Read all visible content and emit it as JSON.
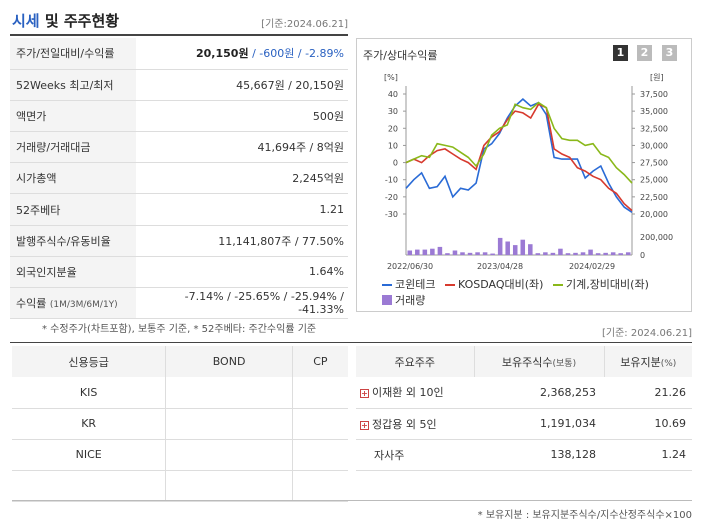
{
  "header": {
    "title_a": "시세",
    "title_b": " 및 주주현황",
    "date": "[기준:2024.06.21]"
  },
  "info_rows": [
    {
      "key": "주가/전일대비/수익률",
      "price": "20,150원",
      "change": " / -600원",
      "rate": " / -2.89%"
    },
    {
      "key": "52Weeks 최고/최저",
      "value": "45,667원 / 20,150원"
    },
    {
      "key": "액면가",
      "value": "500원"
    },
    {
      "key": "거래량/거래대금",
      "value": "41,694주 / 8억원"
    },
    {
      "key": "시가총액",
      "value": "2,245억원"
    },
    {
      "key": "52주베타",
      "value": "1.21"
    },
    {
      "key": "발행주식수/유동비율",
      "value": "11,141,807주 / 77.50%"
    },
    {
      "key": "외국인지분율",
      "value": "1.64%"
    },
    {
      "key": "수익률",
      "key_small": "(1M/3M/6M/1Y)",
      "value": "-7.14% / -25.65% / -25.94% / -41.33%"
    }
  ],
  "note1": "* 수정주가(차트포함), 보통주 기준, * 52주베타: 주간수익률 기준",
  "chart_panel": {
    "title": "주가/상대수익률",
    "pages": [
      "1",
      "2",
      "3"
    ]
  },
  "chart_data": {
    "type": "line",
    "left_unit": "[%]",
    "right_unit": "[원]",
    "left_ticks": [
      "40",
      "30",
      "20",
      "10",
      "0",
      "-10",
      "-20",
      "-30"
    ],
    "right_ticks": [
      "37,500",
      "35,000",
      "32,500",
      "30,000",
      "27,500",
      "25,000",
      "22,500",
      "20,000"
    ],
    "vol_ticks": [
      "200,000",
      "0"
    ],
    "x_labels": [
      "2022/06/30",
      "2023/04/28",
      "2024/02/29"
    ],
    "ylim_left": [
      -30,
      40
    ],
    "series": [
      {
        "name": "코윈테크",
        "color": "#2a6bd6",
        "values": [
          -15,
          -10,
          -6,
          -15,
          -14,
          -8,
          -20,
          -15,
          -16,
          -12,
          8,
          11,
          17,
          26,
          33,
          37,
          33,
          35,
          28,
          3,
          2,
          2,
          2,
          -9,
          -5,
          -2,
          -12,
          -20,
          -26,
          -29
        ]
      },
      {
        "name": "KOSDAQ대비(좌)",
        "color": "#d73a2e",
        "values": [
          0,
          2,
          0,
          4,
          7,
          8,
          5,
          2,
          0,
          -4,
          10,
          15,
          18,
          25,
          30,
          29,
          26,
          34,
          32,
          8,
          5,
          3,
          -3,
          -5,
          -8,
          -10,
          -15,
          -18,
          -24,
          -28
        ]
      },
      {
        "name": "기계,장비대비(좌)",
        "color": "#8ab81a",
        "values": [
          0,
          2,
          4,
          3,
          11,
          10,
          9,
          6,
          3,
          -2,
          5,
          16,
          20,
          22,
          34,
          32,
          31,
          35,
          32,
          20,
          14,
          13,
          13,
          10,
          11,
          5,
          3,
          -3,
          -7,
          -12
        ]
      }
    ],
    "volume": {
      "name": "거래량",
      "color": "#9b7ad4",
      "values": [
        0.25,
        0.3,
        0.3,
        0.35,
        0.45,
        0.1,
        0.25,
        0.15,
        0.12,
        0.15,
        0.15,
        0.08,
        0.95,
        0.75,
        0.55,
        0.85,
        0.6,
        0.1,
        0.15,
        0.12,
        0.35,
        0.1,
        0.12,
        0.15,
        0.3,
        0.1,
        0.12,
        0.15,
        0.1,
        0.15
      ]
    }
  },
  "legend": {
    "vol_label": "거래량"
  },
  "date2": "[기준: 2024.06.21]",
  "credit": {
    "headers": [
      "신용등급",
      "BOND",
      "CP"
    ],
    "rows": [
      [
        "KIS",
        "",
        ""
      ],
      [
        "KR",
        "",
        ""
      ],
      [
        "NICE",
        "",
        ""
      ],
      [
        "",
        "",
        ""
      ]
    ]
  },
  "owners": {
    "headers": [
      "주요주주",
      "보유주식수",
      "(보통)",
      "보유지분",
      "(%)"
    ],
    "rows": [
      {
        "name": "이재환 외 10인",
        "shares": "2,368,253",
        "pct": "21.26",
        "expand": true
      },
      {
        "name": "정갑용 외 5인",
        "shares": "1,191,034",
        "pct": "10.69",
        "expand": true
      },
      {
        "name": "자사주",
        "shares": "138,128",
        "pct": "1.24",
        "expand": false
      }
    ]
  },
  "note2": "* 보유지분 : 보유지분주식수/지수산정주식수×100"
}
